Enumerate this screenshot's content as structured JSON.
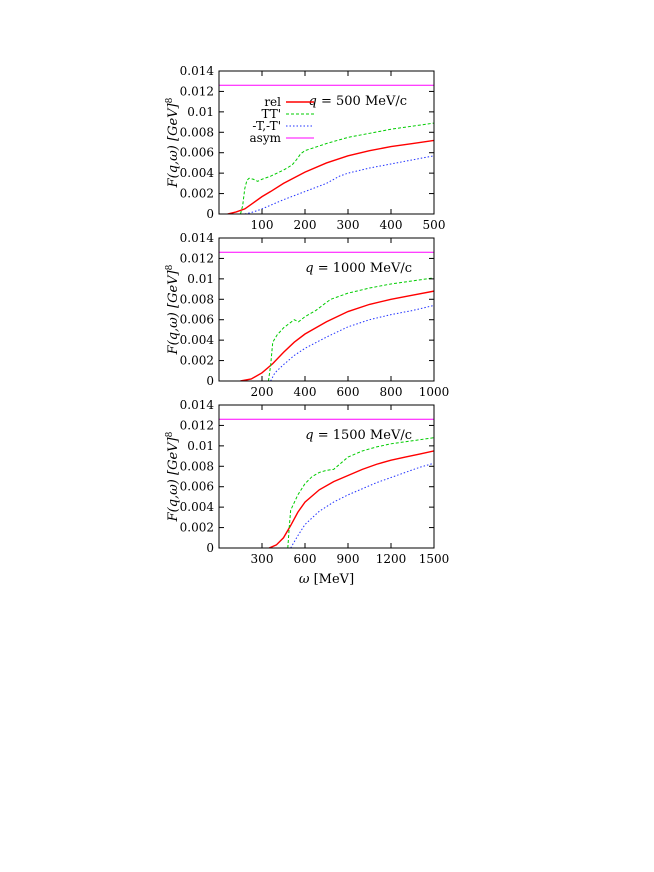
{
  "chart_data": [
    {
      "type": "line",
      "panel": "top",
      "annotation": "q = 500 MeV/c",
      "ylabel": "F(q,ω) [GeV]^8",
      "xlabel": "",
      "xlim": [
        0,
        500
      ],
      "ylim": [
        0,
        0.014
      ],
      "xticks": [
        100,
        200,
        300,
        400,
        500
      ],
      "xtick_labels": [
        "100",
        "200",
        "300",
        "400",
        "500"
      ],
      "yticks": [
        0,
        0.002,
        0.004,
        0.006,
        0.008,
        0.01,
        0.012,
        0.014
      ],
      "ytick_labels": [
        "0",
        "0.002",
        "0.004",
        "0.006",
        "0.008",
        "0.01",
        "0.012",
        "0.014"
      ],
      "legend": {
        "placement": "top-left",
        "entries": [
          "rel",
          "TT'",
          "-T,-T'",
          "asym"
        ]
      },
      "grid": false,
      "series": [
        {
          "name": "rel",
          "color": "#ff0000",
          "style": "solid",
          "x": [
            20,
            40,
            60,
            80,
            100,
            120,
            150,
            200,
            250,
            300,
            350,
            400,
            450,
            500
          ],
          "y": [
            0,
            0.0002,
            0.0005,
            0.0011,
            0.0017,
            0.0022,
            0.003,
            0.0041,
            0.005,
            0.0057,
            0.0062,
            0.0066,
            0.0069,
            0.0072
          ]
        },
        {
          "name": "TT'",
          "color": "#00cc00",
          "style": "dashed",
          "x": [
            50,
            55,
            60,
            65,
            70,
            80,
            90,
            100,
            120,
            150,
            170,
            180,
            190,
            200,
            250,
            300,
            350,
            400,
            450,
            500
          ],
          "y": [
            0,
            0.0008,
            0.0025,
            0.0033,
            0.0035,
            0.0034,
            0.0032,
            0.0034,
            0.0037,
            0.0043,
            0.0048,
            0.0053,
            0.0059,
            0.0062,
            0.0069,
            0.0075,
            0.0079,
            0.0083,
            0.0086,
            0.0089
          ]
        },
        {
          "name": "-T,-T'",
          "color": "#2233ff",
          "style": "dotted",
          "x": [
            60,
            80,
            100,
            150,
            200,
            250,
            280,
            300,
            350,
            400,
            450,
            500
          ],
          "y": [
            0,
            0.0002,
            0.0005,
            0.0014,
            0.0022,
            0.003,
            0.0037,
            0.004,
            0.0045,
            0.0049,
            0.0053,
            0.0057
          ]
        },
        {
          "name": "asym",
          "color": "#ff00ff",
          "style": "solid",
          "x": [
            0,
            500
          ],
          "y": [
            0.0126,
            0.0126
          ]
        }
      ]
    },
    {
      "type": "line",
      "panel": "middle",
      "annotation": "q = 1000 MeV/c",
      "ylabel": "F(q,ω) [GeV]^8",
      "xlabel": "",
      "xlim": [
        0,
        1000
      ],
      "ylim": [
        0,
        0.014
      ],
      "xticks": [
        200,
        400,
        600,
        800,
        1000
      ],
      "xtick_labels": [
        "200",
        "400",
        "600",
        "800",
        "1000"
      ],
      "yticks": [
        0,
        0.002,
        0.004,
        0.006,
        0.008,
        0.01,
        0.012,
        0.014
      ],
      "ytick_labels": [
        "0",
        "0.002",
        "0.004",
        "0.006",
        "0.008",
        "0.01",
        "0.012",
        "0.014"
      ],
      "grid": false,
      "series": [
        {
          "name": "rel",
          "color": "#ff0000",
          "style": "solid",
          "x": [
            100,
            150,
            200,
            250,
            300,
            350,
            400,
            500,
            600,
            700,
            800,
            900,
            1000
          ],
          "y": [
            0,
            0.0002,
            0.0008,
            0.0017,
            0.0028,
            0.0038,
            0.0046,
            0.0058,
            0.0068,
            0.0075,
            0.008,
            0.0084,
            0.0088
          ]
        },
        {
          "name": "TT'",
          "color": "#00cc00",
          "style": "dashed",
          "x": [
            230,
            240,
            250,
            270,
            300,
            350,
            370,
            400,
            450,
            500,
            520,
            600,
            700,
            800,
            900,
            1000
          ],
          "y": [
            0,
            0.0015,
            0.0038,
            0.0045,
            0.0052,
            0.006,
            0.0058,
            0.0063,
            0.0069,
            0.0077,
            0.008,
            0.0086,
            0.0091,
            0.0095,
            0.0098,
            0.0101
          ]
        },
        {
          "name": "-T,-T'",
          "color": "#2233ff",
          "style": "dotted",
          "x": [
            240,
            260,
            300,
            350,
            400,
            500,
            600,
            700,
            800,
            900,
            1000
          ],
          "y": [
            0,
            0.0008,
            0.0016,
            0.0025,
            0.0032,
            0.0043,
            0.0053,
            0.006,
            0.0065,
            0.0069,
            0.0074
          ]
        },
        {
          "name": "asym",
          "color": "#ff00ff",
          "style": "solid",
          "x": [
            0,
            1000
          ],
          "y": [
            0.0126,
            0.0126
          ]
        }
      ]
    },
    {
      "type": "line",
      "panel": "bottom",
      "annotation": "q = 1500 MeV/c",
      "ylabel": "F(q,ω) [GeV]^8",
      "xlabel": "ω [MeV]",
      "xlim": [
        0,
        1500
      ],
      "ylim": [
        0,
        0.014
      ],
      "xticks": [
        300,
        600,
        900,
        1200,
        1500
      ],
      "xtick_labels": [
        "300",
        "600",
        "900",
        "1200",
        "1500"
      ],
      "yticks": [
        0,
        0.002,
        0.004,
        0.006,
        0.008,
        0.01,
        0.012,
        0.014
      ],
      "ytick_labels": [
        "0",
        "0.002",
        "0.004",
        "0.006",
        "0.008",
        "0.01",
        "0.012",
        "0.014"
      ],
      "grid": false,
      "series": [
        {
          "name": "rel",
          "color": "#ff0000",
          "style": "solid",
          "x": [
            350,
            400,
            450,
            500,
            550,
            600,
            700,
            800,
            900,
            1000,
            1100,
            1200,
            1300,
            1400,
            1500
          ],
          "y": [
            0,
            0.0003,
            0.001,
            0.0022,
            0.0035,
            0.0045,
            0.0057,
            0.0065,
            0.0071,
            0.0077,
            0.0082,
            0.0086,
            0.0089,
            0.0092,
            0.0095
          ]
        },
        {
          "name": "TT'",
          "color": "#00cc00",
          "style": "dashed",
          "x": [
            480,
            490,
            500,
            550,
            600,
            650,
            700,
            750,
            800,
            850,
            900,
            1000,
            1100,
            1200,
            1300,
            1400,
            1500
          ],
          "y": [
            0,
            0.002,
            0.0037,
            0.0052,
            0.0063,
            0.007,
            0.0074,
            0.0076,
            0.0077,
            0.0083,
            0.0089,
            0.0095,
            0.0099,
            0.0102,
            0.0104,
            0.0106,
            0.0108
          ]
        },
        {
          "name": "-T,-T'",
          "color": "#2233ff",
          "style": "dotted",
          "x": [
            500,
            550,
            600,
            700,
            800,
            900,
            1000,
            1100,
            1200,
            1300,
            1400,
            1500
          ],
          "y": [
            0,
            0.0012,
            0.0023,
            0.0036,
            0.0045,
            0.0052,
            0.0058,
            0.0064,
            0.0069,
            0.0074,
            0.0079,
            0.0083
          ]
        },
        {
          "name": "asym",
          "color": "#ff00ff",
          "style": "solid",
          "x": [
            0,
            1500
          ],
          "y": [
            0.0126,
            0.0126
          ]
        }
      ]
    }
  ]
}
